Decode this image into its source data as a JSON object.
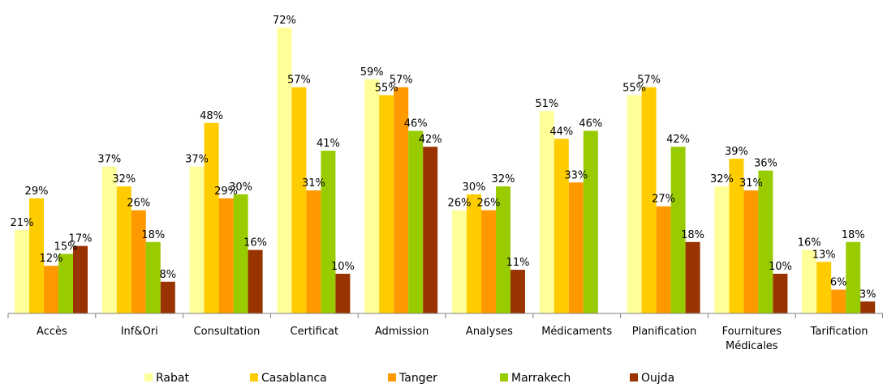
{
  "chart_data": {
    "type": "bar",
    "title": "",
    "xlabel": "",
    "ylabel": "",
    "ylim": [
      0,
      75
    ],
    "grid": false,
    "legend_position": "bottom",
    "value_suffix": "%",
    "categories": [
      [
        "Accès"
      ],
      [
        "Inf&Ori"
      ],
      [
        "Consultation"
      ],
      [
        "Certificat"
      ],
      [
        "Admission"
      ],
      [
        "Analyses"
      ],
      [
        "Médicaments"
      ],
      [
        "Planification"
      ],
      [
        "Fournitures",
        "Médicales"
      ],
      [
        "Tarification"
      ]
    ],
    "series": [
      {
        "name": "Rabat",
        "color": "#FFFF99",
        "values": [
          21,
          37,
          37,
          72,
          59,
          26,
          51,
          55,
          32,
          16
        ]
      },
      {
        "name": "Casablanca",
        "color": "#FFCC00",
        "values": [
          29,
          32,
          48,
          57,
          55,
          30,
          44,
          57,
          39,
          13
        ]
      },
      {
        "name": "Tanger",
        "color": "#FF9900",
        "values": [
          12,
          26,
          29,
          31,
          57,
          26,
          33,
          27,
          31,
          6
        ]
      },
      {
        "name": "Marrakech",
        "color": "#99CC00",
        "values": [
          15,
          18,
          30,
          41,
          46,
          32,
          46,
          42,
          36,
          18
        ]
      },
      {
        "name": "Oujda",
        "color": "#993300",
        "values": [
          17,
          8,
          16,
          10,
          42,
          11,
          null,
          18,
          10,
          3
        ]
      }
    ]
  }
}
